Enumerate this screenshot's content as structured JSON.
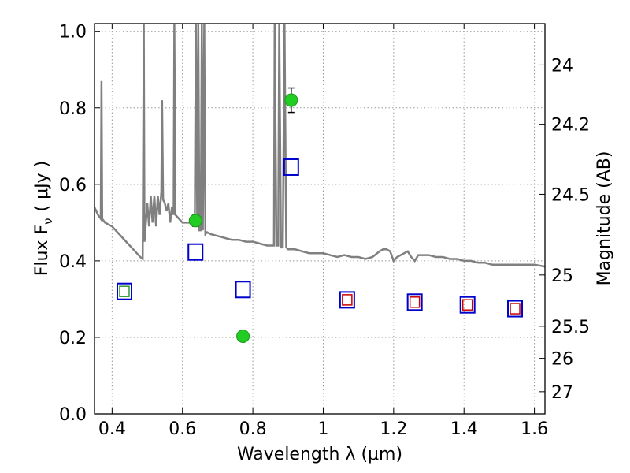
{
  "chart_data": {
    "type": "scatter",
    "xlabel": "Wavelength  λ (μm)",
    "ylabel": "Flux  F",
    "ylabel_sub": "ν",
    "ylabel_unit": "( μJy )",
    "y2label": "Magnitude (AB)",
    "xlim": [
      0.35,
      1.63
    ],
    "ylim": [
      0.0,
      1.02
    ],
    "grid": true,
    "x_ticks": [
      {
        "v": 0.4,
        "label": "0.4"
      },
      {
        "v": 0.6,
        "label": "0.6"
      },
      {
        "v": 0.8,
        "label": "0.8"
      },
      {
        "v": 1.0,
        "label": "1"
      },
      {
        "v": 1.2,
        "label": "1.2"
      },
      {
        "v": 1.4,
        "label": "1.4"
      },
      {
        "v": 1.6,
        "label": "1.6"
      }
    ],
    "y_ticks": [
      {
        "v": 0.0,
        "label": "0.0"
      },
      {
        "v": 0.2,
        "label": "0.2"
      },
      {
        "v": 0.4,
        "label": "0.4"
      },
      {
        "v": 0.6,
        "label": "0.6"
      },
      {
        "v": 0.8,
        "label": "0.8"
      },
      {
        "v": 1.0,
        "label": "1.0"
      }
    ],
    "mag_ticks": [
      {
        "flux": 0.912,
        "label": "24"
      },
      {
        "flux": 0.757,
        "label": "24.2"
      },
      {
        "flux": 0.574,
        "label": "24.5"
      },
      {
        "flux": 0.363,
        "label": "25"
      },
      {
        "flux": 0.229,
        "label": "25.5"
      },
      {
        "flux": 0.145,
        "label": "26"
      },
      {
        "flux": 0.058,
        "label": "27"
      }
    ],
    "series": [
      {
        "kind": "sed_model",
        "color": "#808080",
        "points": [
          [
            0.35,
            0.54
          ],
          [
            0.36,
            0.52
          ],
          [
            0.368,
            0.51
          ],
          [
            0.37,
            0.87
          ],
          [
            0.372,
            0.51
          ],
          [
            0.38,
            0.5
          ],
          [
            0.4,
            0.49
          ],
          [
            0.42,
            0.47
          ],
          [
            0.44,
            0.45
          ],
          [
            0.46,
            0.43
          ],
          [
            0.48,
            0.41
          ],
          [
            0.487,
            0.405
          ],
          [
            0.49,
            1.02
          ],
          [
            0.492,
            0.45
          ],
          [
            0.5,
            0.55
          ],
          [
            0.505,
            0.49
          ],
          [
            0.51,
            0.57
          ],
          [
            0.515,
            0.5
          ],
          [
            0.52,
            0.57
          ],
          [
            0.525,
            0.49
          ],
          [
            0.53,
            0.57
          ],
          [
            0.535,
            0.52
          ],
          [
            0.54,
            0.58
          ],
          [
            0.542,
            0.82
          ],
          [
            0.545,
            0.56
          ],
          [
            0.55,
            0.55
          ],
          [
            0.555,
            0.53
          ],
          [
            0.56,
            0.55
          ],
          [
            0.565,
            0.5
          ],
          [
            0.57,
            0.54
          ],
          [
            0.575,
            0.52
          ],
          [
            0.577,
            1.02
          ],
          [
            0.58,
            0.52
          ],
          [
            0.59,
            0.51
          ],
          [
            0.6,
            0.5
          ],
          [
            0.62,
            0.5
          ],
          [
            0.635,
            0.5
          ],
          [
            0.638,
            1.02
          ],
          [
            0.642,
            0.49
          ],
          [
            0.645,
            1.02
          ],
          [
            0.648,
            0.48
          ],
          [
            0.652,
            0.48
          ],
          [
            0.655,
            1.02
          ],
          [
            0.658,
            0.48
          ],
          [
            0.662,
            1.02
          ],
          [
            0.665,
            0.47
          ],
          [
            0.67,
            0.475
          ],
          [
            0.68,
            0.47
          ],
          [
            0.7,
            0.465
          ],
          [
            0.72,
            0.46
          ],
          [
            0.74,
            0.455
          ],
          [
            0.76,
            0.455
          ],
          [
            0.78,
            0.45
          ],
          [
            0.8,
            0.45
          ],
          [
            0.82,
            0.445
          ],
          [
            0.84,
            0.44
          ],
          [
            0.86,
            0.44
          ],
          [
            0.862,
            1.02
          ],
          [
            0.867,
            0.44
          ],
          [
            0.872,
            0.44
          ],
          [
            0.875,
            1.02
          ],
          [
            0.88,
            0.435
          ],
          [
            0.885,
            0.435
          ],
          [
            0.89,
            1.02
          ],
          [
            0.895,
            0.435
          ],
          [
            0.9,
            0.43
          ],
          [
            0.92,
            0.43
          ],
          [
            0.94,
            0.425
          ],
          [
            0.96,
            0.42
          ],
          [
            0.98,
            0.42
          ],
          [
            1.0,
            0.42
          ],
          [
            1.02,
            0.415
          ],
          [
            1.04,
            0.41
          ],
          [
            1.06,
            0.415
          ],
          [
            1.08,
            0.41
          ],
          [
            1.1,
            0.41
          ],
          [
            1.12,
            0.405
          ],
          [
            1.14,
            0.41
          ],
          [
            1.16,
            0.425
          ],
          [
            1.17,
            0.43
          ],
          [
            1.18,
            0.43
          ],
          [
            1.19,
            0.425
          ],
          [
            1.2,
            0.4
          ],
          [
            1.21,
            0.41
          ],
          [
            1.22,
            0.415
          ],
          [
            1.23,
            0.42
          ],
          [
            1.24,
            0.425
          ],
          [
            1.25,
            0.41
          ],
          [
            1.26,
            0.4
          ],
          [
            1.27,
            0.415
          ],
          [
            1.28,
            0.415
          ],
          [
            1.3,
            0.415
          ],
          [
            1.32,
            0.41
          ],
          [
            1.34,
            0.41
          ],
          [
            1.36,
            0.405
          ],
          [
            1.38,
            0.405
          ],
          [
            1.4,
            0.4
          ],
          [
            1.42,
            0.4
          ],
          [
            1.44,
            0.395
          ],
          [
            1.46,
            0.395
          ],
          [
            1.48,
            0.39
          ],
          [
            1.5,
            0.39
          ],
          [
            1.52,
            0.39
          ],
          [
            1.54,
            0.39
          ],
          [
            1.56,
            0.39
          ],
          [
            1.58,
            0.39
          ],
          [
            1.6,
            0.39
          ],
          [
            1.63,
            0.385
          ]
        ]
      },
      {
        "kind": "observed",
        "color": "#22cc22",
        "points": [
          {
            "x": 0.637,
            "y": 0.505,
            "err": 0.015
          },
          {
            "x": 0.772,
            "y": 0.203,
            "err": 0.012
          },
          {
            "x": 0.909,
            "y": 0.82,
            "err": 0.032
          }
        ]
      },
      {
        "kind": "model_photometry",
        "color": "#0000cc",
        "points": [
          {
            "x": 0.435,
            "y": 0.32
          },
          {
            "x": 0.637,
            "y": 0.423
          },
          {
            "x": 0.772,
            "y": 0.325
          },
          {
            "x": 0.909,
            "y": 0.645
          },
          {
            "x": 1.068,
            "y": 0.298
          },
          {
            "x": 1.26,
            "y": 0.292
          },
          {
            "x": 1.41,
            "y": 0.285
          },
          {
            "x": 1.545,
            "y": 0.275
          }
        ]
      },
      {
        "kind": "inner_squares",
        "points": [
          {
            "x": 0.435,
            "y": 0.32,
            "color": "#339933"
          },
          {
            "x": 1.068,
            "y": 0.298,
            "color": "#cc0000"
          },
          {
            "x": 1.26,
            "y": 0.292,
            "color": "#cc0000"
          },
          {
            "x": 1.41,
            "y": 0.285,
            "color": "#cc0000"
          },
          {
            "x": 1.545,
            "y": 0.275,
            "color": "#cc0000"
          }
        ]
      }
    ]
  }
}
